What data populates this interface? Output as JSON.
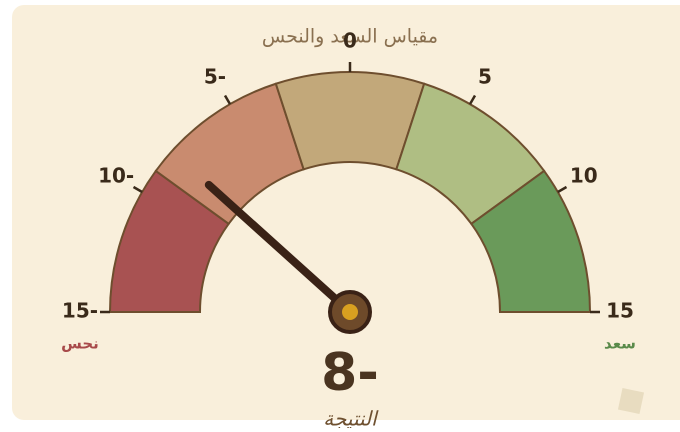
{
  "chart_data": {
    "type": "gauge",
    "title": "مقياس السعد والنحس",
    "xlim": [
      -15,
      15
    ],
    "xticks": [
      {
        "value": -15,
        "label": "15-"
      },
      {
        "value": -10,
        "label": "10-"
      },
      {
        "value": -5,
        "label": "5-"
      },
      0,
      5,
      10,
      15
    ],
    "bands": [
      {
        "from": -15,
        "to": -9,
        "color": "#a85252"
      },
      {
        "from": -9,
        "to": -3,
        "color": "#c98b6f"
      },
      {
        "from": -3,
        "to": 3,
        "color": "#c2a87a"
      },
      {
        "from": 3,
        "to": 9,
        "color": "#afbe83"
      },
      {
        "from": 9,
        "to": 15,
        "color": "#6a9a5a"
      }
    ],
    "values": [
      -8
    ],
    "value_labels": [
      "8-"
    ],
    "value_caption": "النتيجة",
    "min_label": "نحس",
    "max_label": "سعد"
  }
}
